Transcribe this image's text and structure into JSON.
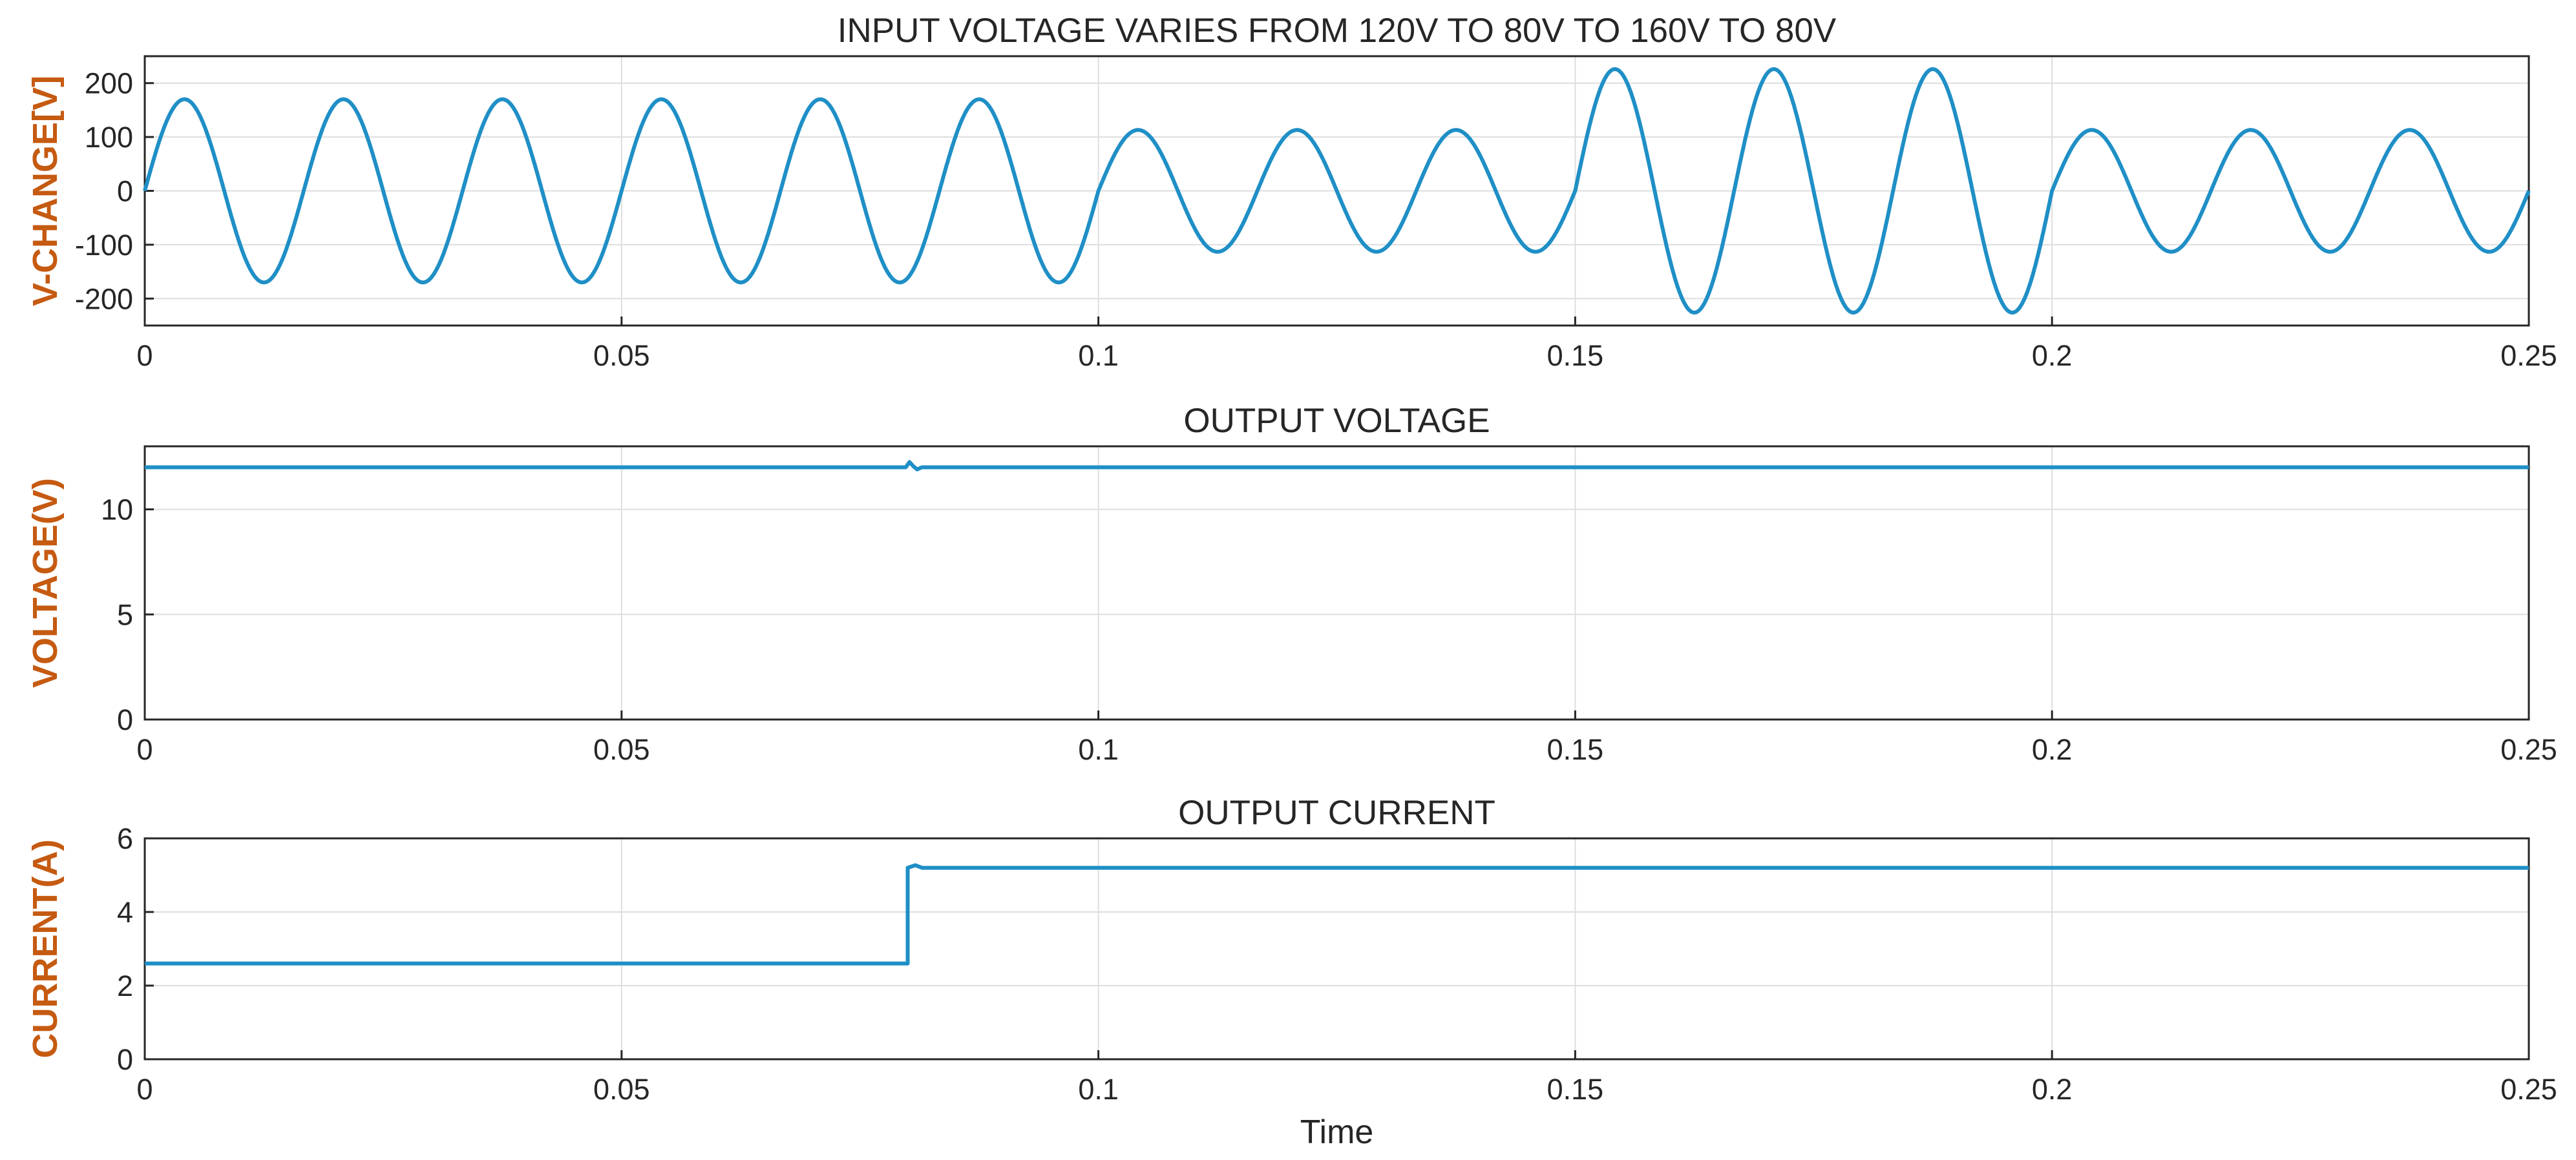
{
  "colors": {
    "trace": "#1f8fc6",
    "ylabel": "#c55a11",
    "grid": "#dedede",
    "axes": "#262626"
  },
  "chart_data": [
    {
      "type": "line",
      "title": "INPUT VOLTAGE VARIES FROM 120V TO 80V TO 160V TO 80V",
      "xlabel": "",
      "ylabel": "V-CHANGE[V]",
      "xlim": [
        0,
        0.25
      ],
      "ylim": [
        -250,
        250
      ],
      "grid": true,
      "xticks": [
        "0",
        "0.05",
        "0.1",
        "0.15",
        "0.2",
        "0.25"
      ],
      "yticks": [
        "-200",
        "-100",
        "0",
        "100",
        "200"
      ],
      "frequency_hz": 60,
      "segments": [
        {
          "t_start": 0,
          "t_end": 0.1,
          "amplitude": 170
        },
        {
          "t_start": 0.1,
          "t_end": 0.15,
          "amplitude": 113
        },
        {
          "t_start": 0.15,
          "t_end": 0.2,
          "amplitude": 226
        },
        {
          "t_start": 0.2,
          "t_end": 0.25,
          "amplitude": 113
        }
      ]
    },
    {
      "type": "line",
      "title": "OUTPUT VOLTAGE",
      "xlabel": "",
      "ylabel": "VOLTAGE(V)",
      "xlim": [
        0,
        0.25
      ],
      "ylim": [
        0,
        13
      ],
      "grid": true,
      "xticks": [
        "0",
        "0.05",
        "0.1",
        "0.15",
        "0.2",
        "0.25"
      ],
      "yticks": [
        "0",
        "5",
        "10"
      ],
      "points": [
        [
          0,
          12
        ],
        [
          0.0798,
          12
        ],
        [
          0.0802,
          12.25
        ],
        [
          0.0806,
          12.05
        ],
        [
          0.081,
          11.9
        ],
        [
          0.0815,
          12
        ],
        [
          0.25,
          12
        ]
      ]
    },
    {
      "type": "line",
      "title": "OUTPUT CURRENT",
      "xlabel": "Time",
      "ylabel": "CURRENT(A)",
      "xlim": [
        0,
        0.25
      ],
      "ylim": [
        0,
        6
      ],
      "grid": true,
      "xticks": [
        "0",
        "0.05",
        "0.1",
        "0.15",
        "0.2",
        "0.25"
      ],
      "yticks": [
        "0",
        "2",
        "4",
        "6"
      ],
      "points": [
        [
          0,
          2.6
        ],
        [
          0.08,
          2.6
        ],
        [
          0.08,
          5.2
        ],
        [
          0.0808,
          5.27
        ],
        [
          0.0815,
          5.2
        ],
        [
          0.25,
          5.2
        ]
      ]
    }
  ]
}
